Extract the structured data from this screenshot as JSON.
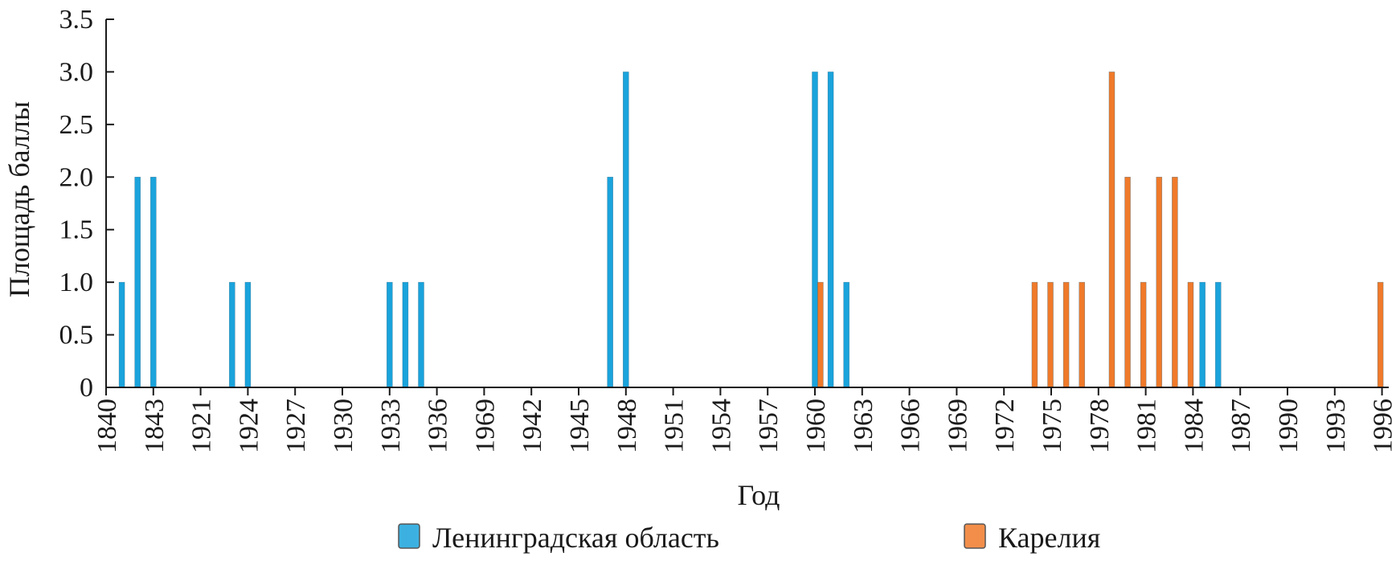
{
  "chart_data": {
    "type": "bar",
    "title": "",
    "xlabel": "Год",
    "ylabel": "Площадь баллы",
    "ylim": [
      0,
      3.5
    ],
    "yticks": [
      "0",
      "0.5",
      "1.0",
      "1.5",
      "2.0",
      "2.5",
      "3.0",
      "3.5"
    ],
    "x_tick_labels": [
      "1840",
      "1843",
      "1921",
      "1924",
      "1927",
      "1930",
      "1933",
      "1936",
      "1969",
      "1942",
      "1945",
      "1948",
      "1951",
      "1954",
      "1957",
      "1960",
      "1963",
      "1966",
      "1969",
      "1972",
      "1975",
      "1978",
      "1981",
      "1984",
      "1987",
      "1990",
      "1993",
      "1996"
    ],
    "x_tick_step": 3,
    "legend_position": "bottom",
    "colors": {
      "leningrad": "#1aa3dc",
      "karelia": "#f07a2a"
    },
    "series": [
      {
        "name": "Ленинградская область",
        "color_key": "leningrad",
        "points": [
          {
            "pos": 1,
            "value": 1
          },
          {
            "pos": 2,
            "value": 2
          },
          {
            "pos": 3,
            "value": 2
          },
          {
            "pos": 8,
            "value": 1
          },
          {
            "pos": 9,
            "value": 1
          },
          {
            "pos": 18,
            "value": 1
          },
          {
            "pos": 19,
            "value": 1
          },
          {
            "pos": 20,
            "value": 1
          },
          {
            "pos": 32,
            "value": 2
          },
          {
            "pos": 33,
            "value": 3
          },
          {
            "pos": 45,
            "value": 3
          },
          {
            "pos": 46,
            "value": 3
          },
          {
            "pos": 47,
            "value": 1
          },
          {
            "pos": 69.6,
            "value": 1
          },
          {
            "pos": 70.6,
            "value": 1
          }
        ]
      },
      {
        "name": "Карелия",
        "color_key": "karelia",
        "points": [
          {
            "pos": 45.35,
            "value": 1
          },
          {
            "pos": 58.95,
            "value": 1
          },
          {
            "pos": 59.95,
            "value": 1
          },
          {
            "pos": 60.95,
            "value": 1
          },
          {
            "pos": 61.95,
            "value": 1
          },
          {
            "pos": 63.85,
            "value": 3
          },
          {
            "pos": 64.85,
            "value": 2
          },
          {
            "pos": 65.85,
            "value": 1
          },
          {
            "pos": 66.85,
            "value": 2
          },
          {
            "pos": 67.85,
            "value": 2
          },
          {
            "pos": 68.85,
            "value": 1
          },
          {
            "pos": 80.9,
            "value": 1
          }
        ]
      }
    ]
  }
}
